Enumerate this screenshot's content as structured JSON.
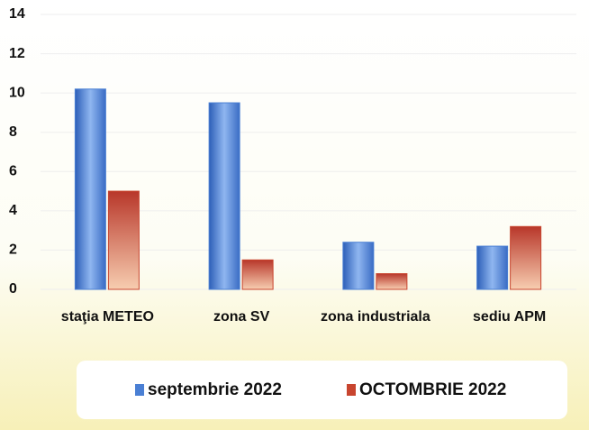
{
  "chart_data": {
    "type": "bar",
    "categories": [
      "staţia METEO",
      "zona SV",
      "zona industriala",
      "sediu APM"
    ],
    "series": [
      {
        "name": "septembrie 2022",
        "color": "#4a7fd4",
        "values": [
          10.2,
          9.5,
          2.4,
          2.2
        ]
      },
      {
        "name": "OCTOMBRIE 2022",
        "color": "#c8452f",
        "values": [
          5.0,
          1.5,
          0.8,
          3.2
        ]
      }
    ],
    "ylim": [
      0,
      14
    ],
    "yticks": [
      0,
      2,
      4,
      6,
      8,
      10,
      12,
      14
    ],
    "grid": true,
    "legend": "bottom"
  }
}
